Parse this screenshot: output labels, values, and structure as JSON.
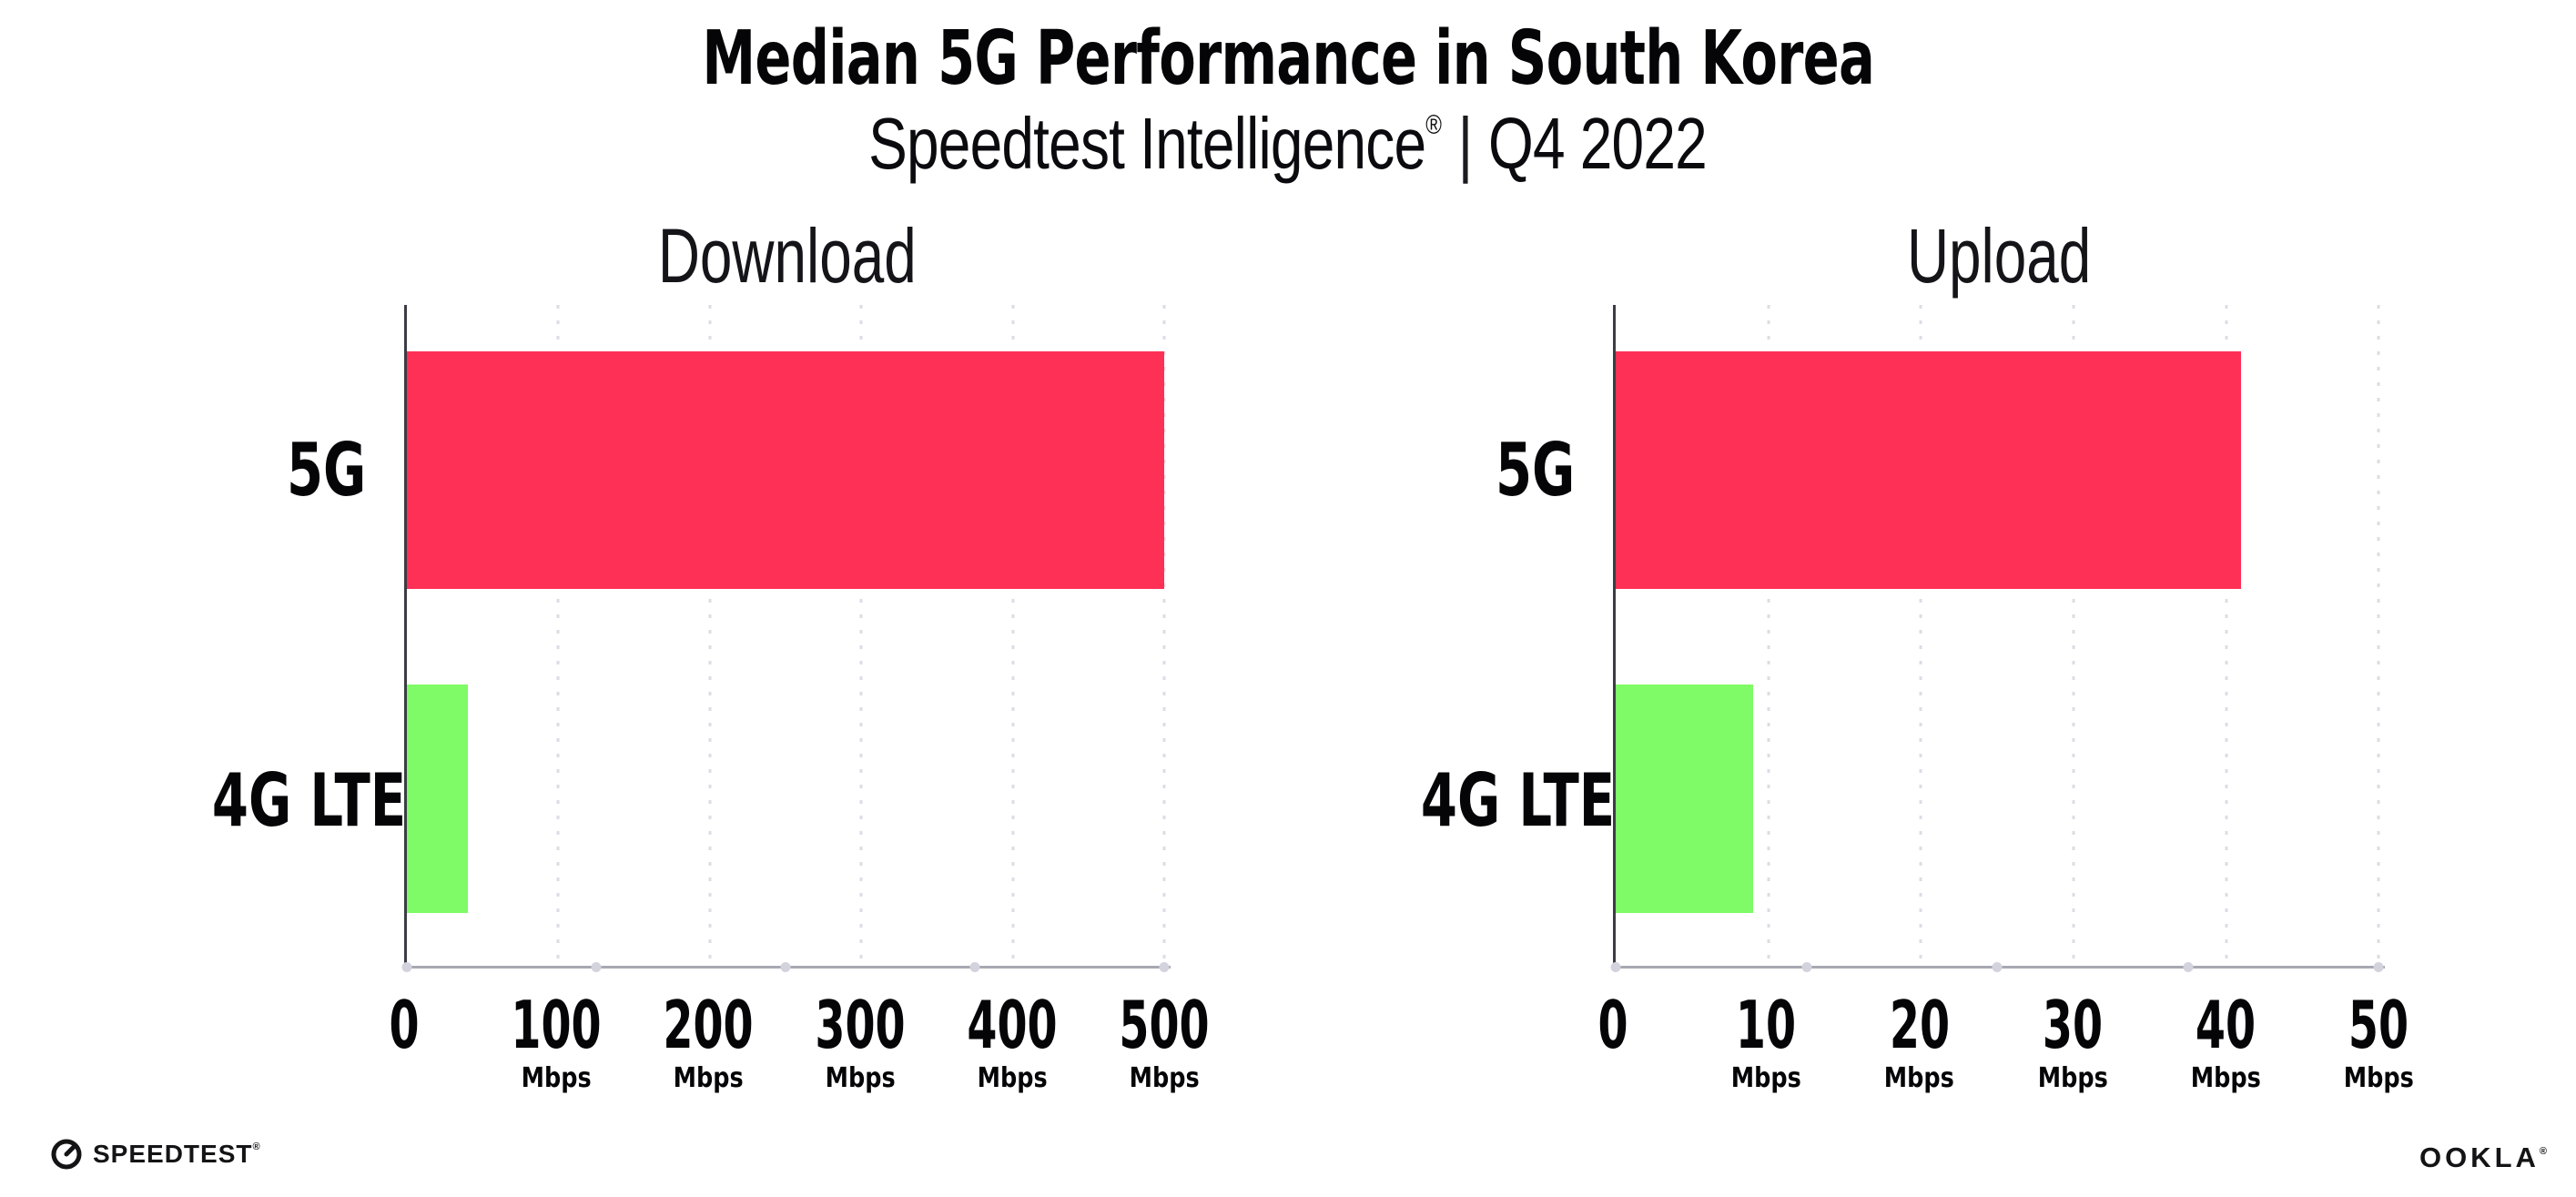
{
  "page": {
    "title": "Median 5G Performance in South Korea",
    "subtitle": {
      "brand": "Speedtest Intelligence",
      "registered": "®",
      "separator": "|",
      "period": "Q4 2022"
    }
  },
  "chart_data": [
    {
      "type": "bar",
      "orientation": "horizontal",
      "title": "Download",
      "unit_label": "Mbps",
      "categories": [
        "5G",
        "4G LTE"
      ],
      "values": [
        500,
        40
      ],
      "xticks": [
        0,
        100,
        200,
        300,
        400,
        500
      ],
      "xlim": [
        0,
        504
      ],
      "bar_colors": [
        "#FF3056",
        "#7EFB66"
      ],
      "grid": "vertical dotted",
      "legend": "none"
    },
    {
      "type": "bar",
      "orientation": "horizontal",
      "title": "Upload",
      "unit_label": "Mbps",
      "categories": [
        "5G",
        "4G LTE"
      ],
      "values": [
        41,
        9
      ],
      "xticks": [
        0,
        10,
        20,
        30,
        40,
        50
      ],
      "xlim": [
        0,
        50.4
      ],
      "bar_colors": [
        "#FF3056",
        "#7EFB66"
      ],
      "grid": "vertical dotted",
      "legend": "none"
    }
  ],
  "footer": {
    "speedtest_wordmark": "SPEEDTEST",
    "speedtest_mark": "®",
    "ookla_wordmark": "OOKLA",
    "ookla_mark": "®"
  },
  "colors": {
    "bar_5g": "#FF3056",
    "bar_4g_lte": "#7EFB66",
    "gridline": "#DCDCE6",
    "axis_left": "#3C3C44",
    "axis_bottom": "#A8A8B2"
  }
}
